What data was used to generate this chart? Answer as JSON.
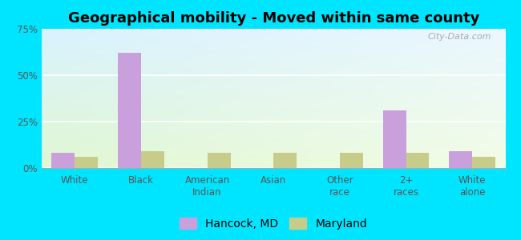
{
  "title": "Geographical mobility - Moved within same county",
  "categories": [
    "White",
    "Black",
    "American\nIndian",
    "Asian",
    "Other\nrace",
    "2+\nraces",
    "White\nalone"
  ],
  "hancock_values": [
    8,
    62,
    0,
    0,
    0,
    31,
    9
  ],
  "maryland_values": [
    6,
    9,
    8,
    8,
    8,
    8,
    6
  ],
  "hancock_color": "#c9a0dc",
  "maryland_color": "#c8cc8a",
  "bar_width": 0.35,
  "ylim": [
    0,
    75
  ],
  "yticks": [
    0,
    25,
    50,
    75
  ],
  "ytick_labels": [
    "0%",
    "25%",
    "50%",
    "75%"
  ],
  "background_color": "#00e5ff",
  "legend_labels": [
    "Hancock, MD",
    "Maryland"
  ],
  "title_fontsize": 13,
  "tick_fontsize": 8.5,
  "legend_fontsize": 10,
  "watermark": "City-Data.com",
  "bg_color_topleft": [
    0.85,
    0.95,
    1.0
  ],
  "bg_color_topright": [
    0.92,
    0.97,
    1.0
  ],
  "bg_color_bottomleft": [
    0.88,
    0.97,
    0.82
  ],
  "bg_color_bottomright": [
    0.95,
    0.99,
    0.9
  ]
}
